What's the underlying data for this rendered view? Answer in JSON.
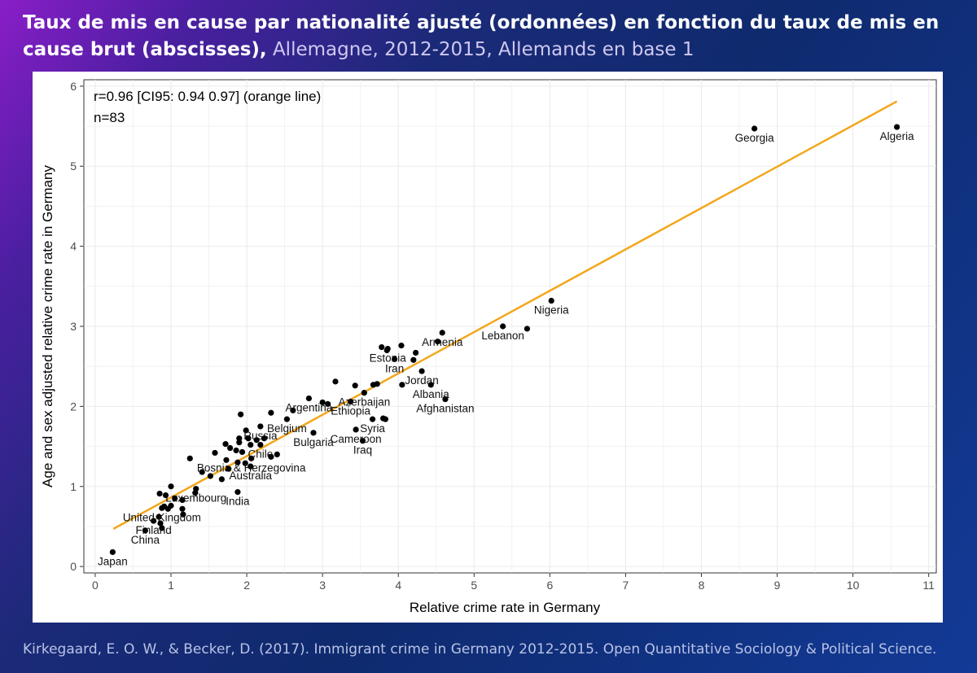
{
  "title": {
    "bold": "Taux de mis en cause par nationalité ajusté (ordonnées) en fonction du taux de mis en cause brut (abscisses),",
    "light": "Allemagne, 2012-2015, Allemands en base 1"
  },
  "citation": "Kirkegaard, E. O. W., & Becker, D. (2017). Immigrant crime in Germany 2012-2015. Open Quantitative Sociology & Political Science.",
  "colors": {
    "fit_line": "#f2a71b",
    "points": "#000000",
    "grid": "#ebebeb"
  },
  "chart_data": {
    "type": "scatter",
    "xlabel": "Relative crime rate in Germany",
    "ylabel": "Age and sex adjusted relative crime rate in Germany",
    "xlim": [
      -0.15,
      11.1
    ],
    "ylim": [
      -0.08,
      6.08
    ],
    "xticks": [
      0,
      1,
      2,
      3,
      4,
      5,
      6,
      7,
      8,
      9,
      10,
      11
    ],
    "yticks": [
      0,
      1,
      2,
      3,
      4,
      5,
      6
    ],
    "grid": true,
    "annotations": [
      "r=0.96 [CI95: 0.94 0.97] (orange line)",
      "n=83"
    ],
    "fit_line": {
      "x": [
        0.24,
        10.58
      ],
      "y": [
        0.47,
        5.81
      ]
    },
    "points": [
      {
        "x": 0.23,
        "y": 0.18,
        "label": "Japan"
      },
      {
        "x": 0.66,
        "y": 0.45,
        "label": "China"
      },
      {
        "x": 0.88,
        "y": 0.48,
        "label": ""
      },
      {
        "x": 0.86,
        "y": 0.54,
        "label": ""
      },
      {
        "x": 0.77,
        "y": 0.57,
        "label": "Finland"
      },
      {
        "x": 0.84,
        "y": 0.62,
        "label": ""
      },
      {
        "x": 0.88,
        "y": 0.73,
        "label": "United Kingdom"
      },
      {
        "x": 0.91,
        "y": 0.75,
        "label": ""
      },
      {
        "x": 0.96,
        "y": 0.72,
        "label": ""
      },
      {
        "x": 1.0,
        "y": 0.76,
        "label": ""
      },
      {
        "x": 0.85,
        "y": 0.91,
        "label": ""
      },
      {
        "x": 0.93,
        "y": 0.89,
        "label": ""
      },
      {
        "x": 1.0,
        "y": 1.0,
        "label": ""
      },
      {
        "x": 1.05,
        "y": 0.85,
        "label": ""
      },
      {
        "x": 1.15,
        "y": 0.83,
        "label": ""
      },
      {
        "x": 1.16,
        "y": 0.65,
        "label": ""
      },
      {
        "x": 1.15,
        "y": 0.72,
        "label": ""
      },
      {
        "x": 1.32,
        "y": 0.92,
        "label": ""
      },
      {
        "x": 1.33,
        "y": 0.97,
        "label": "Luxembourg"
      },
      {
        "x": 1.25,
        "y": 1.35,
        "label": ""
      },
      {
        "x": 1.41,
        "y": 1.18,
        "label": ""
      },
      {
        "x": 1.52,
        "y": 1.13,
        "label": ""
      },
      {
        "x": 1.58,
        "y": 1.42,
        "label": ""
      },
      {
        "x": 1.67,
        "y": 1.09,
        "label": ""
      },
      {
        "x": 1.73,
        "y": 1.33,
        "label": ""
      },
      {
        "x": 1.72,
        "y": 1.53,
        "label": ""
      },
      {
        "x": 1.76,
        "y": 1.22,
        "label": ""
      },
      {
        "x": 1.78,
        "y": 1.48,
        "label": ""
      },
      {
        "x": 1.86,
        "y": 1.45,
        "label": ""
      },
      {
        "x": 1.88,
        "y": 1.3,
        "label": ""
      },
      {
        "x": 1.88,
        "y": 0.93,
        "label": "India"
      },
      {
        "x": 1.9,
        "y": 1.55,
        "label": ""
      },
      {
        "x": 1.9,
        "y": 1.6,
        "label": ""
      },
      {
        "x": 1.92,
        "y": 1.9,
        "label": ""
      },
      {
        "x": 1.94,
        "y": 1.43,
        "label": ""
      },
      {
        "x": 1.98,
        "y": 1.29,
        "label": ""
      },
      {
        "x": 1.99,
        "y": 1.7,
        "label": ""
      },
      {
        "x": 2.02,
        "y": 1.6,
        "label": ""
      },
      {
        "x": 2.05,
        "y": 1.25,
        "label": "Australia"
      },
      {
        "x": 2.05,
        "y": 1.52,
        "label": ""
      },
      {
        "x": 2.06,
        "y": 1.35,
        "label": "Bosnia & Herzegovina"
      },
      {
        "x": 2.13,
        "y": 1.58,
        "label": ""
      },
      {
        "x": 2.18,
        "y": 1.52,
        "label": "Chile"
      },
      {
        "x": 2.18,
        "y": 1.75,
        "label": "Russia"
      },
      {
        "x": 2.23,
        "y": 1.6,
        "label": ""
      },
      {
        "x": 2.32,
        "y": 1.92,
        "label": ""
      },
      {
        "x": 2.32,
        "y": 1.37,
        "label": ""
      },
      {
        "x": 2.4,
        "y": 1.4,
        "label": ""
      },
      {
        "x": 2.53,
        "y": 1.84,
        "label": "Belgium"
      },
      {
        "x": 2.61,
        "y": 1.95,
        "label": ""
      },
      {
        "x": 2.82,
        "y": 2.1,
        "label": "Argentina"
      },
      {
        "x": 2.88,
        "y": 1.67,
        "label": "Bulgaria"
      },
      {
        "x": 3.0,
        "y": 2.05,
        "label": ""
      },
      {
        "x": 3.07,
        "y": 2.03,
        "label": ""
      },
      {
        "x": 3.17,
        "y": 2.31,
        "label": ""
      },
      {
        "x": 3.37,
        "y": 2.06,
        "label": "Ethiopia"
      },
      {
        "x": 3.43,
        "y": 2.26,
        "label": ""
      },
      {
        "x": 3.44,
        "y": 1.71,
        "label": "Cameroon"
      },
      {
        "x": 3.53,
        "y": 1.57,
        "label": "Iraq"
      },
      {
        "x": 3.55,
        "y": 2.17,
        "label": "Azerbaijan"
      },
      {
        "x": 3.66,
        "y": 1.84,
        "label": "Syria"
      },
      {
        "x": 3.67,
        "y": 2.27,
        "label": ""
      },
      {
        "x": 3.72,
        "y": 2.28,
        "label": ""
      },
      {
        "x": 3.78,
        "y": 2.74,
        "label": ""
      },
      {
        "x": 3.8,
        "y": 1.85,
        "label": ""
      },
      {
        "x": 3.83,
        "y": 1.84,
        "label": ""
      },
      {
        "x": 3.86,
        "y": 2.72,
        "label": "Estonia"
      },
      {
        "x": 3.95,
        "y": 2.59,
        "label": "Iran"
      },
      {
        "x": 4.04,
        "y": 2.76,
        "label": ""
      },
      {
        "x": 4.05,
        "y": 2.27,
        "label": ""
      },
      {
        "x": 4.2,
        "y": 2.58,
        "label": ""
      },
      {
        "x": 4.23,
        "y": 2.67,
        "label": ""
      },
      {
        "x": 4.31,
        "y": 2.44,
        "label": "Jordan"
      },
      {
        "x": 4.43,
        "y": 2.27,
        "label": "Albania"
      },
      {
        "x": 4.52,
        "y": 2.81,
        "label": ""
      },
      {
        "x": 4.58,
        "y": 2.92,
        "label": "Armenia"
      },
      {
        "x": 4.62,
        "y": 2.09,
        "label": "Afghanistan"
      },
      {
        "x": 5.38,
        "y": 3.0,
        "label": "Lebanon"
      },
      {
        "x": 5.7,
        "y": 2.97,
        "label": ""
      },
      {
        "x": 6.02,
        "y": 3.32,
        "label": "Nigeria"
      },
      {
        "x": 8.7,
        "y": 5.47,
        "label": "Georgia"
      },
      {
        "x": 10.58,
        "y": 5.49,
        "label": "Algeria"
      },
      {
        "x": 3.85,
        "y": 2.7,
        "label": ""
      }
    ]
  }
}
